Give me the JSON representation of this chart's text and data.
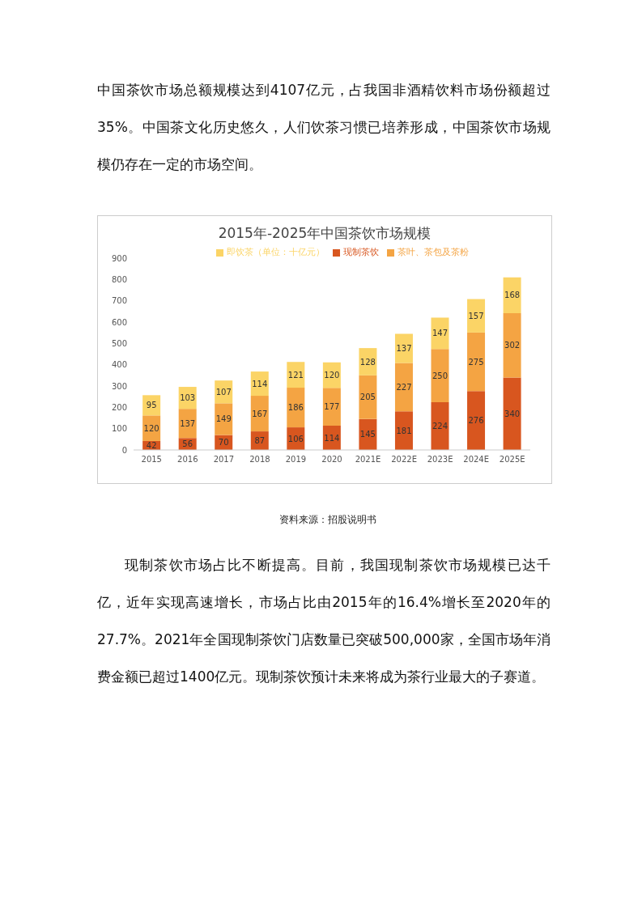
{
  "chart_data": {
    "type": "bar",
    "title": "2015年-2025年中国茶饮市场规模",
    "categories": [
      "2015",
      "2016",
      "2017",
      "2018",
      "2019",
      "2020",
      "2021E",
      "2022E",
      "2023E",
      "2024E",
      "2025E"
    ],
    "series": [
      {
        "name": "现制茶饮",
        "color": "#d8561f",
        "values": [
          42,
          56,
          70,
          87,
          106,
          114,
          145,
          181,
          224,
          276,
          340
        ]
      },
      {
        "name": "茶叶、茶包及茶粉",
        "color": "#f4a443",
        "values": [
          120,
          137,
          149,
          167,
          186,
          177,
          205,
          227,
          250,
          275,
          302
        ]
      },
      {
        "name": "即饮茶（单位：十亿元）",
        "color": "#fbd466",
        "values": [
          95,
          103,
          107,
          114,
          121,
          120,
          128,
          137,
          147,
          157,
          168
        ]
      }
    ],
    "stacked": true,
    "ylim": [
      0,
      900
    ],
    "yticks": [
      0,
      100,
      200,
      300,
      400,
      500,
      600,
      700,
      800,
      900
    ],
    "grid": false,
    "legend": "top",
    "data_labels": true,
    "annotations": [
      "中国茶饮市场总额规模达到4107亿元，占我国非酒精饮料市场份额超过35%。中国茶文化历史悠久，人们饮茶习惯已培养形成，中国茶饮市场规模仍存在一定的市场空间。",
      "资料来源：招股说明书",
      "现制茶饮市场占比不断提高。目前，我国现制茶饮市场规模已达千亿，近年实现高速增长，市场占比由2015年的16.4%增长至2020年的27.7%。2021年全国现制茶饮门店数量已突破500,000家，全国市场年消费金额已超过1400亿元。现制茶饮预计未来将成为茶行业最大的子赛道。"
    ]
  }
}
